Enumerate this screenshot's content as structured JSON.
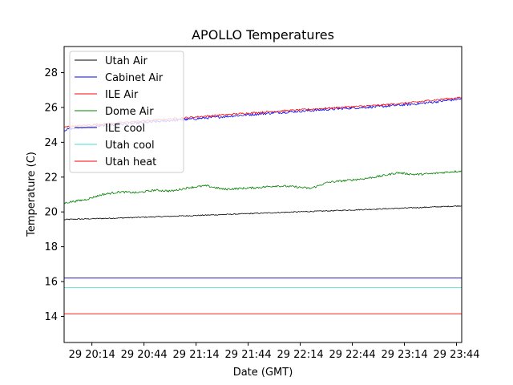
{
  "chart_data": {
    "type": "line",
    "title": "APOLLO Temperatures",
    "xlabel": "Date (GMT)",
    "ylabel": "Temperature (C)",
    "x_unit": "minutes since 20:00 GMT on day 29",
    "xlim": [
      -2,
      227
    ],
    "ylim": [
      12.5,
      29.5
    ],
    "y_ticks": [
      14,
      16,
      18,
      20,
      22,
      24,
      26,
      28
    ],
    "x_ticks": [
      {
        "value": 14,
        "label": "29 20:14"
      },
      {
        "value": 44,
        "label": "29 20:44"
      },
      {
        "value": 74,
        "label": "29 21:14"
      },
      {
        "value": 104,
        "label": "29 21:44"
      },
      {
        "value": 134,
        "label": "29 22:14"
      },
      {
        "value": 164,
        "label": "29 22:44"
      },
      {
        "value": 194,
        "label": "29 23:14"
      },
      {
        "value": 224,
        "label": "29 23:44"
      }
    ],
    "grid": false,
    "legend_position": "top-left",
    "series": [
      {
        "name": "Utah Air",
        "color": "#000000",
        "x": [
          -2,
          0,
          30,
          60,
          90,
          120,
          150,
          180,
          210,
          227
        ],
        "y": [
          19.55,
          19.57,
          19.65,
          19.75,
          19.85,
          19.96,
          20.06,
          20.17,
          20.28,
          20.35
        ]
      },
      {
        "name": "Cabinet Air",
        "color": "#0000ff",
        "x": [
          -2,
          0,
          20,
          40,
          60,
          80,
          100,
          120,
          140,
          160,
          180,
          200,
          210,
          227
        ],
        "y": [
          24.7,
          24.75,
          24.95,
          25.1,
          25.25,
          25.4,
          25.55,
          25.7,
          25.82,
          25.95,
          26.05,
          26.2,
          26.3,
          26.5
        ]
      },
      {
        "name": "ILE Air",
        "color": "#ff0000",
        "x": [
          -2,
          0,
          20,
          40,
          60,
          80,
          100,
          120,
          140,
          160,
          180,
          200,
          210,
          227
        ],
        "y": [
          24.85,
          24.9,
          25.05,
          25.2,
          25.35,
          25.5,
          25.65,
          25.78,
          25.9,
          26.02,
          26.13,
          26.3,
          26.42,
          26.57
        ]
      },
      {
        "name": "Dome Air",
        "color": "#008000",
        "x": [
          -2,
          0,
          10,
          20,
          30,
          40,
          50,
          60,
          70,
          80,
          90,
          100,
          110,
          120,
          130,
          140,
          150,
          160,
          170,
          180,
          190,
          200,
          210,
          220,
          227
        ],
        "y": [
          20.5,
          20.55,
          20.7,
          21.0,
          21.15,
          21.1,
          21.25,
          21.2,
          21.4,
          21.5,
          21.3,
          21.35,
          21.4,
          21.5,
          21.45,
          21.35,
          21.7,
          21.8,
          21.9,
          22.05,
          22.25,
          22.15,
          22.2,
          22.3,
          22.35
        ]
      },
      {
        "name": "ILE cool",
        "color": "#00008b",
        "x": [
          -2,
          227
        ],
        "y": [
          16.2,
          16.2
        ]
      },
      {
        "name": "Utah cool",
        "color": "#40e0d0",
        "x": [
          -2,
          227
        ],
        "y": [
          15.65,
          15.65
        ]
      },
      {
        "name": "Utah heat",
        "color": "#ff0000",
        "x": [
          -2,
          227
        ],
        "y": [
          14.15,
          14.15
        ]
      }
    ]
  }
}
